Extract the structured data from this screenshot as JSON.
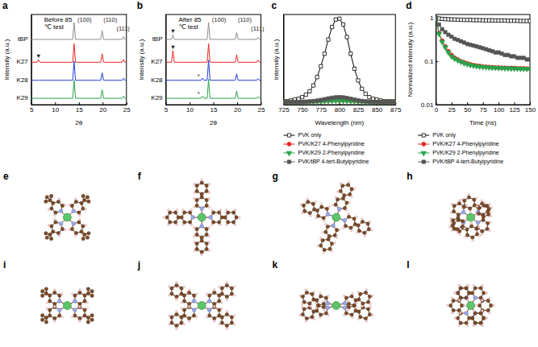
{
  "chart_data": [
    {
      "type": "line",
      "panel_label": "a",
      "title": "Before 85 ℃ test",
      "x_label": "2θ",
      "y_label": "Intensity (a.u.)",
      "x": [
        5,
        6.2,
        6.5,
        6.8,
        12.4,
        12.7,
        13.0,
        13.7,
        14.0,
        14.3,
        19.6,
        19.9,
        20.2,
        24.1,
        24.4,
        24.7,
        25
      ],
      "xlim": [
        5,
        25
      ],
      "xticks": [
        5,
        10,
        15,
        20,
        25
      ],
      "ylim": [
        0,
        17
      ],
      "tick_labels": "x",
      "series": [
        {
          "name": "tBP",
          "color": "#8c8c8c",
          "values": [
            12.3,
            12.3,
            12.3,
            12.3,
            12.3,
            12.3,
            12.3,
            12.3,
            15.5,
            12.3,
            12.3,
            14.0,
            12.3,
            12.3,
            12.8,
            12.3,
            12.3
          ]
        },
        {
          "name": "K27",
          "color": "#e8251f",
          "values": [
            8.0,
            8.0,
            8.5,
            8.0,
            8.0,
            8.0,
            8.0,
            8.0,
            11.5,
            8.0,
            8.0,
            9.6,
            8.0,
            8.0,
            8.5,
            8.0,
            8.0
          ]
        },
        {
          "name": "K28",
          "color": "#1f3fd8",
          "values": [
            4.6,
            4.6,
            4.6,
            4.6,
            4.6,
            4.6,
            4.6,
            4.6,
            8.2,
            4.6,
            4.6,
            6.0,
            4.6,
            4.6,
            5.0,
            4.6,
            4.6
          ]
        },
        {
          "name": "K29",
          "color": "#27a34a",
          "values": [
            1.2,
            1.2,
            1.2,
            1.2,
            1.2,
            1.2,
            1.2,
            1.2,
            4.6,
            1.2,
            1.2,
            2.8,
            1.2,
            1.2,
            1.6,
            1.2,
            1.2
          ]
        }
      ],
      "annotations": [
        {
          "text": "(100)",
          "x": 16.2,
          "y": 16.0
        },
        {
          "text": "(110)",
          "x": 21.6,
          "y": 16.0
        },
        {
          "text": "(111)",
          "x": 24.3,
          "y": 14.4
        },
        {
          "text": "▼",
          "x": 6.5,
          "y": 9.2
        }
      ]
    },
    {
      "type": "line",
      "panel_label": "b",
      "title": "After 85 ℃ test",
      "x_label": "2θ",
      "y_label": "Intensity (a.u.)",
      "x": [
        5,
        6.2,
        6.5,
        6.8,
        12.4,
        12.7,
        13.0,
        13.7,
        14.0,
        14.3,
        19.6,
        19.9,
        20.2,
        24.1,
        24.4,
        24.7,
        25
      ],
      "xlim": [
        5,
        25
      ],
      "xticks": [
        5,
        10,
        15,
        20,
        25
      ],
      "ylim": [
        0,
        17
      ],
      "tick_labels": "x",
      "series": [
        {
          "name": "tBP",
          "color": "#8c8c8c",
          "values": [
            12.3,
            12.3,
            13.2,
            12.3,
            12.3,
            12.3,
            12.3,
            12.3,
            15.5,
            12.3,
            12.3,
            13.6,
            12.3,
            12.3,
            12.7,
            12.3,
            12.3
          ]
        },
        {
          "name": "K27",
          "color": "#e8251f",
          "values": [
            8.0,
            8.0,
            10.2,
            8.0,
            8.0,
            8.0,
            8.0,
            8.0,
            11.5,
            8.0,
            8.0,
            9.4,
            8.0,
            8.0,
            8.4,
            8.0,
            8.0
          ]
        },
        {
          "name": "K28",
          "color": "#1f3fd8",
          "values": [
            4.6,
            4.6,
            4.6,
            4.6,
            4.6,
            5.0,
            4.6,
            4.6,
            8.4,
            4.6,
            4.6,
            5.8,
            4.6,
            4.6,
            4.9,
            4.6,
            4.6
          ]
        },
        {
          "name": "K29",
          "color": "#27a34a",
          "values": [
            1.2,
            1.2,
            1.2,
            1.2,
            1.2,
            1.6,
            1.2,
            1.2,
            4.8,
            1.2,
            1.2,
            2.6,
            1.2,
            1.2,
            1.5,
            1.2,
            1.2
          ]
        }
      ],
      "annotations": [
        {
          "text": "(100)",
          "x": 16.2,
          "y": 16.0
        },
        {
          "text": "(110)",
          "x": 21.6,
          "y": 16.0
        },
        {
          "text": "(111)",
          "x": 24.3,
          "y": 14.4
        },
        {
          "text": "▼",
          "x": 6.5,
          "y": 13.9
        },
        {
          "text": "▼",
          "x": 6.5,
          "y": 10.9
        },
        {
          "text": "*",
          "x": 11.9,
          "y": 5.4
        },
        {
          "text": "*",
          "x": 11.9,
          "y": 2.0
        }
      ]
    },
    {
      "type": "line",
      "panel_label": "c",
      "x_label": "Wavelength (nm)",
      "y_label": "Intensity (a.u.)",
      "x": [
        725,
        730,
        735,
        740,
        745,
        750,
        755,
        760,
        765,
        770,
        775,
        780,
        785,
        790,
        795,
        800,
        805,
        810,
        815,
        820,
        825,
        830,
        835,
        840,
        845,
        850,
        855,
        860,
        865,
        870,
        875
      ],
      "xlim": [
        725,
        875
      ],
      "xticks": [
        725,
        750,
        775,
        800,
        825,
        850,
        875
      ],
      "ylim": [
        -0.03,
        1.05
      ],
      "tick_labels": "x",
      "legend": "bottom",
      "series": [
        {
          "name": "PVK only",
          "color": "#000000",
          "marker": "square-open",
          "values": [
            0.01,
            0.01,
            0.02,
            0.03,
            0.04,
            0.06,
            0.09,
            0.13,
            0.2,
            0.3,
            0.43,
            0.58,
            0.75,
            0.9,
            0.99,
            1.0,
            0.93,
            0.78,
            0.58,
            0.4,
            0.26,
            0.16,
            0.1,
            0.06,
            0.04,
            0.03,
            0.02,
            0.01,
            0.01,
            0.01,
            0.01
          ]
        },
        {
          "name": "PVK/K27 4-Phenylpyridine",
          "color": "#e8251f",
          "marker": "circle",
          "values": [
            0,
            0,
            0,
            0,
            0,
            0,
            0.002,
            0.004,
            0.006,
            0.008,
            0.011,
            0.014,
            0.017,
            0.019,
            0.021,
            0.021,
            0.02,
            0.018,
            0.015,
            0.012,
            0.009,
            0.006,
            0.004,
            0.003,
            0.002,
            0.001,
            0,
            0,
            0,
            0,
            0
          ]
        },
        {
          "name": "PVK/K29 2-Phenylpyridine",
          "color": "#27a34a",
          "marker": "triangle-down",
          "values": [
            0,
            0,
            0,
            0,
            0,
            0,
            0.002,
            0.003,
            0.005,
            0.007,
            0.009,
            0.012,
            0.015,
            0.017,
            0.018,
            0.018,
            0.017,
            0.015,
            0.013,
            0.01,
            0.008,
            0.005,
            0.003,
            0.002,
            0.001,
            0.001,
            0,
            0,
            0,
            0,
            0
          ]
        },
        {
          "name": "PVK/tBP 4-tert-Butylpyridine",
          "color": "#555555",
          "marker": "square",
          "values": [
            0,
            0,
            0,
            0,
            0.001,
            0.003,
            0.006,
            0.009,
            0.013,
            0.019,
            0.027,
            0.036,
            0.045,
            0.053,
            0.058,
            0.06,
            0.057,
            0.05,
            0.041,
            0.031,
            0.022,
            0.015,
            0.01,
            0.006,
            0.004,
            0.002,
            0.001,
            0,
            0,
            0,
            0
          ]
        }
      ]
    },
    {
      "type": "line",
      "panel_label": "d",
      "x_label": "Time (ns)",
      "y_label": "Normalized intensity (a.u.)",
      "log": "y",
      "x": [
        0,
        5,
        10,
        15,
        20,
        25,
        30,
        35,
        40,
        45,
        50,
        55,
        60,
        65,
        70,
        75,
        80,
        85,
        90,
        95,
        100,
        105,
        110,
        115,
        120,
        125,
        130,
        135,
        140,
        145,
        150
      ],
      "xlim": [
        0,
        150
      ],
      "xticks": [
        0,
        25,
        50,
        75,
        100,
        125,
        150
      ],
      "ylim": [
        0.01,
        1.2
      ],
      "yticks": [
        0.01,
        0.1,
        1
      ],
      "legend": "bottom",
      "series": [
        {
          "name": "PVK only",
          "color": "#000000",
          "marker": "square-open",
          "values": [
            1.0,
            0.97,
            0.95,
            0.94,
            0.93,
            0.92,
            0.92,
            0.91,
            0.91,
            0.9,
            0.9,
            0.9,
            0.89,
            0.89,
            0.89,
            0.88,
            0.88,
            0.88,
            0.88,
            0.87,
            0.87,
            0.87,
            0.87,
            0.86,
            0.86,
            0.86,
            0.86,
            0.85,
            0.85,
            0.85,
            0.85
          ]
        },
        {
          "name": "PVK/K27 4-Phenylpyridine",
          "color": "#e8251f",
          "marker": "circle",
          "values": [
            1.0,
            0.45,
            0.3,
            0.22,
            0.17,
            0.14,
            0.12,
            0.11,
            0.1,
            0.095,
            0.09,
            0.085,
            0.082,
            0.08,
            0.078,
            0.076,
            0.075,
            0.074,
            0.073,
            0.072,
            0.072,
            0.071,
            0.071,
            0.07,
            0.07,
            0.07,
            0.069,
            0.069,
            0.069,
            0.068,
            0.068
          ]
        },
        {
          "name": "PVK/K29 2-Phenylpyridine",
          "color": "#27a34a",
          "marker": "triangle-down",
          "values": [
            1.0,
            0.43,
            0.28,
            0.21,
            0.16,
            0.13,
            0.115,
            0.105,
            0.097,
            0.09,
            0.086,
            0.082,
            0.079,
            0.077,
            0.075,
            0.074,
            0.073,
            0.072,
            0.071,
            0.071,
            0.07,
            0.07,
            0.069,
            0.069,
            0.068,
            0.068,
            0.068,
            0.067,
            0.067,
            0.067,
            0.067
          ]
        },
        {
          "name": "PVK/tBP 4-tert-Butylpyridine",
          "color": "#555555",
          "marker": "square",
          "values": [
            1.0,
            0.7,
            0.55,
            0.47,
            0.41,
            0.37,
            0.33,
            0.31,
            0.29,
            0.27,
            0.25,
            0.24,
            0.23,
            0.22,
            0.21,
            0.2,
            0.19,
            0.18,
            0.17,
            0.16,
            0.16,
            0.15,
            0.14,
            0.14,
            0.13,
            0.13,
            0.12,
            0.12,
            0.12,
            0.11,
            0.11
          ]
        }
      ]
    }
  ],
  "structures": {
    "labels": [
      "e",
      "f",
      "g",
      "h",
      "i",
      "j",
      "k",
      "l"
    ]
  }
}
